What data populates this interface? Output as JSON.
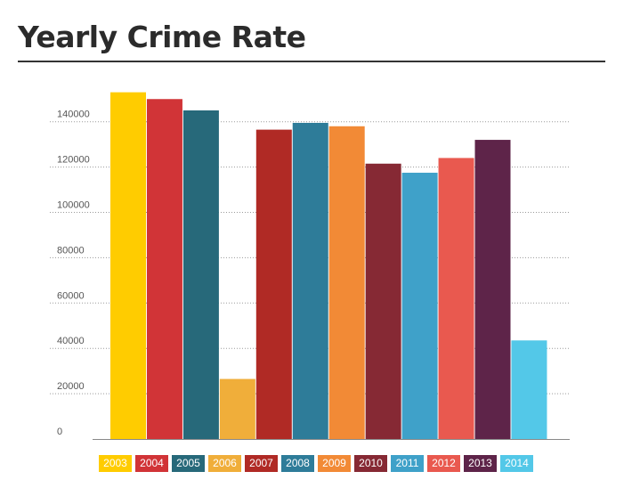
{
  "chart_data": {
    "type": "bar",
    "title": "Yearly Crime Rate",
    "categories": [
      "2003",
      "2004",
      "2005",
      "2006",
      "2007",
      "2008",
      "2009",
      "2010",
      "2011",
      "2012",
      "2013",
      "2014"
    ],
    "values": [
      153000,
      150000,
      145000,
      26500,
      136500,
      139500,
      138000,
      121500,
      117500,
      124000,
      132000,
      43500
    ],
    "colors": [
      "#FFCC00",
      "#D13437",
      "#27697A",
      "#F0AE3A",
      "#B02A25",
      "#2E7C99",
      "#F28A36",
      "#862934",
      "#3FA1C9",
      "#E9594F",
      "#5E2449",
      "#53C8E8"
    ],
    "yticks": [
      0,
      20000,
      40000,
      60000,
      80000,
      100000,
      120000,
      140000
    ],
    "ylim": [
      0,
      155000
    ],
    "xlabel": "",
    "ylabel": "",
    "grid": true,
    "legend": "bottom"
  }
}
